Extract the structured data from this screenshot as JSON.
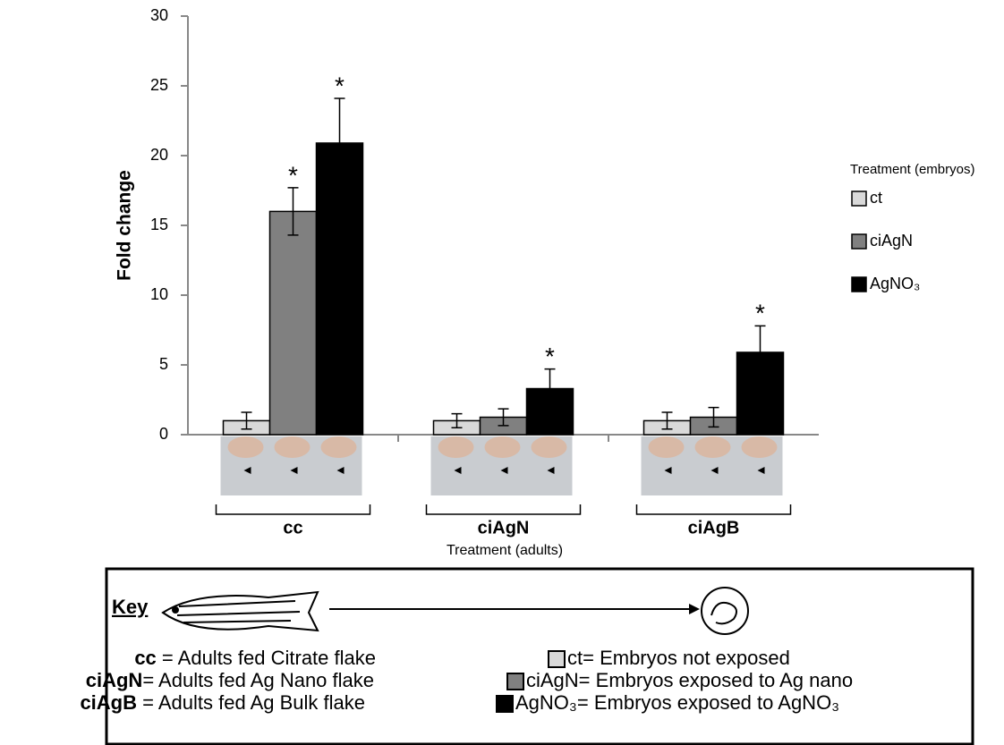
{
  "chart_data": {
    "type": "bar",
    "y_label": "Fold change",
    "x_label": "Treatment (adults)",
    "categories": [
      "cc",
      "ciAgN",
      "ciAgB"
    ],
    "ylim": [
      0,
      30
    ],
    "yticks": [
      0,
      5,
      10,
      15,
      20,
      25,
      30
    ],
    "legend_title": "Treatment (embryos)",
    "series": [
      {
        "name": "ct",
        "color": "#d9d9d9",
        "values": [
          1.0,
          1.0,
          1.0
        ],
        "errors": [
          0.6,
          0.5,
          0.6
        ],
        "significance": [
          null,
          null,
          null
        ]
      },
      {
        "name": "ciAgN",
        "color": "#808080",
        "values": [
          16.0,
          1.25,
          1.25
        ],
        "errors": [
          1.7,
          0.6,
          0.7
        ],
        "significance": [
          "*",
          null,
          null
        ]
      },
      {
        "name": "AgNO₃",
        "color": "#000000",
        "values": [
          20.9,
          3.3,
          5.9
        ],
        "errors": [
          3.2,
          1.4,
          1.9
        ],
        "significance": [
          "*",
          "*",
          "*"
        ]
      }
    ]
  },
  "key": {
    "title": "Key",
    "adults": [
      {
        "code": "cc",
        "text": " = Adults fed Citrate flake"
      },
      {
        "code": "ciAgN",
        "text": "= Adults fed Ag Nano flake"
      },
      {
        "code": "ciAgB",
        "text": " = Adults fed Ag Bulk flake"
      }
    ],
    "embryos": [
      "ct= Embryos not exposed",
      "ciAgN= Embryos exposed to Ag nano",
      "AgNO₃= Embryos exposed to AgNO₃"
    ]
  }
}
